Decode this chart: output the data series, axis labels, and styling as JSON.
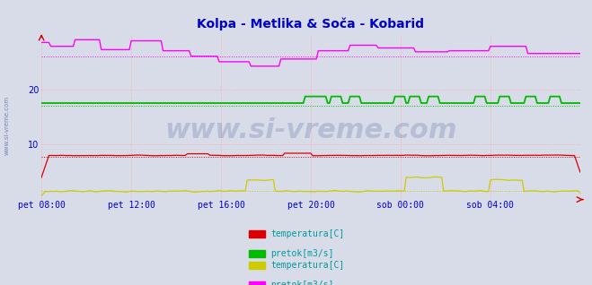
{
  "title": "Kolpa - Metlika & Soča - Kobarid",
  "title_color": "#0000cc",
  "title_fontsize": 10,
  "bg_color": "#d8dce8",
  "plot_bg_color": "#d8dce8",
  "grid_color": "#ffaaaa",
  "xlim": [
    0,
    288
  ],
  "ylim": [
    0,
    30
  ],
  "yticks": [
    10,
    20
  ],
  "xtick_labels": [
    "pet 08:00",
    "pet 12:00",
    "pet 16:00",
    "pet 20:00",
    "sob 00:00",
    "sob 04:00"
  ],
  "xtick_positions": [
    0,
    48,
    96,
    144,
    192,
    240
  ],
  "watermark": "www.si-vreme.com",
  "watermark_color": "#1a3a7a",
  "watermark_alpha": 0.18,
  "watermark_fontsize": 22,
  "legend_labels": [
    "temperatura[C]",
    "pretok[m3/s]",
    "temperatura[C]",
    "pretok[m3/s]"
  ],
  "legend_colors": [
    "#dd0000",
    "#00bb00",
    "#cccc00",
    "#ff00ff"
  ],
  "legend_color_text": "#009999",
  "legend_fontsize": 7,
  "tick_color": "#0000cc",
  "tick_fontsize": 7,
  "sidewatermark": "www.si-vreme.com",
  "n_points": 289,
  "red_base": 8.0,
  "green_base": 17.5,
  "yellow_base": 1.5,
  "magenta_avg_val": 26.0,
  "red_avg_val": 7.8,
  "green_avg_val": 17.0,
  "yellow_avg_val": 1.5
}
